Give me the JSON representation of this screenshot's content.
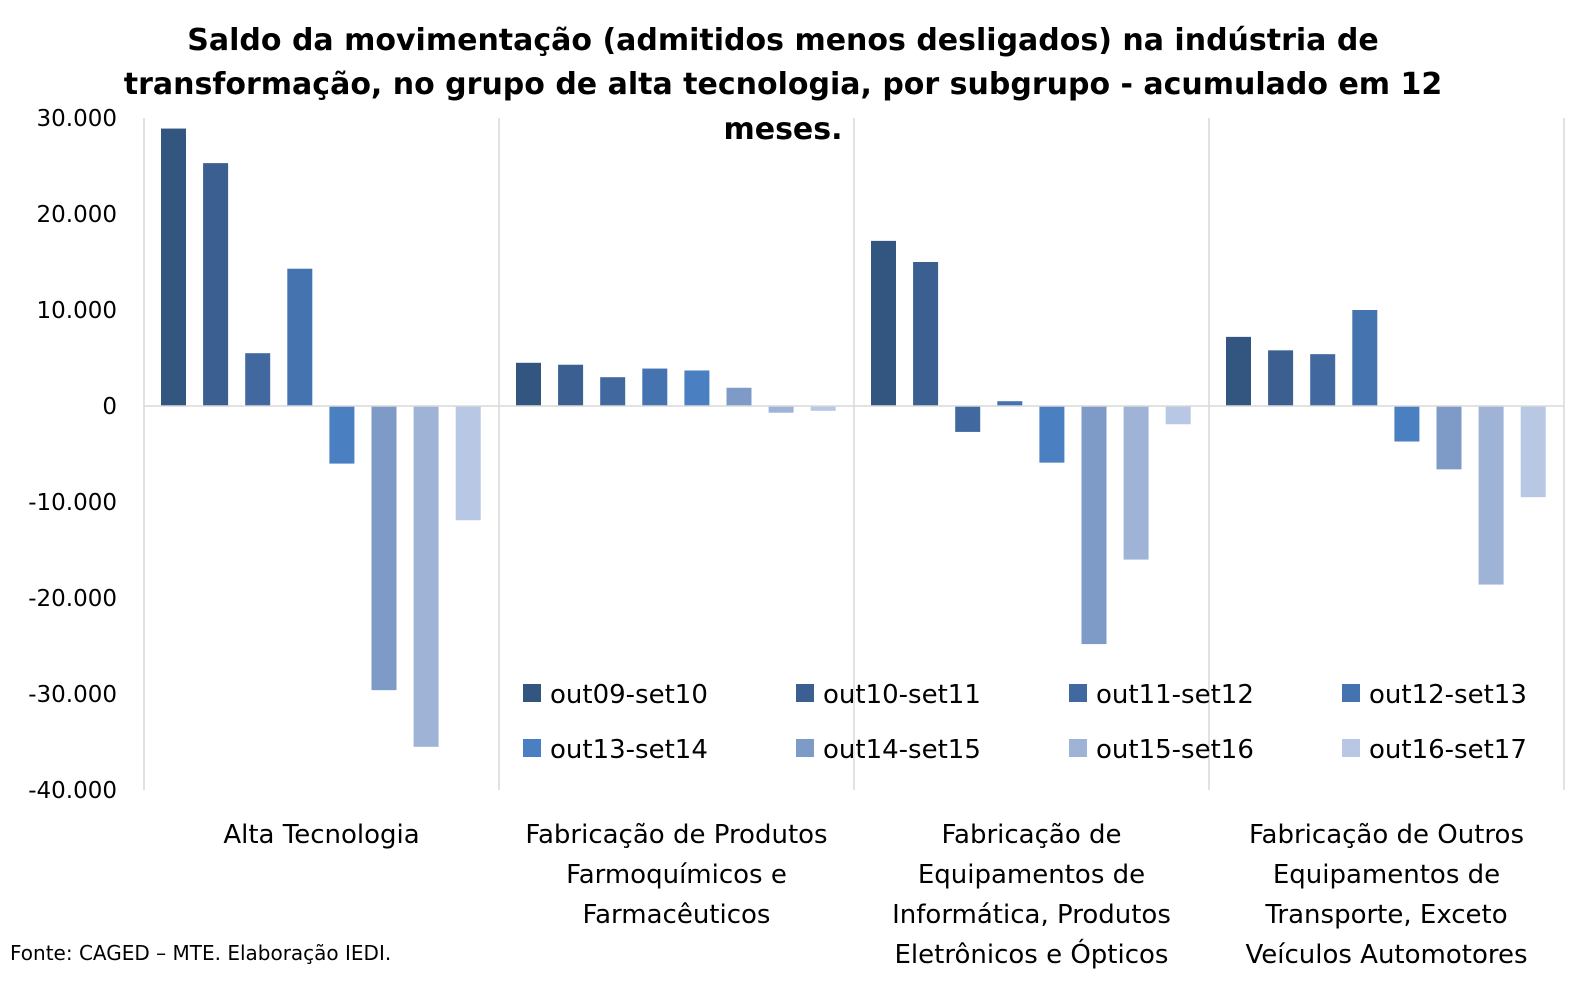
{
  "chart_data": {
    "type": "bar",
    "title": [
      "Saldo da movimentação (admitidos menos desligados) na indústria de",
      "transformação, no grupo de alta tecnologia, por subgrupo - acumulado em 12",
      "meses."
    ],
    "categories": [
      [
        "Alta Tecnologia"
      ],
      [
        "Fabricação de Produtos",
        "Farmoquímicos e",
        "Farmacêuticos"
      ],
      [
        "Fabricação de",
        "Equipamentos de",
        "Informática, Produtos",
        "Eletrônicos e Ópticos"
      ],
      [
        "Fabricação de Outros",
        "Equipamentos de",
        "Transporte, Exceto",
        "Veículos Automotores"
      ]
    ],
    "series": [
      {
        "name": "out09-set10",
        "color": "#335680",
        "values": [
          28900,
          4500,
          17200,
          7200
        ]
      },
      {
        "name": "out10-set11",
        "color": "#3b5f90",
        "values": [
          25300,
          4300,
          15000,
          5800
        ]
      },
      {
        "name": "out11-set12",
        "color": "#41699f",
        "values": [
          5500,
          3000,
          -2700,
          5400
        ]
      },
      {
        "name": "out12-set13",
        "color": "#4473b0",
        "values": [
          14300,
          3900,
          500,
          10000
        ]
      },
      {
        "name": "out13-set14",
        "color": "#4a7fc1",
        "values": [
          -6000,
          3700,
          -5900,
          -3700
        ]
      },
      {
        "name": "out14-set15",
        "color": "#7e9bc8",
        "values": [
          -29600,
          1900,
          -24800,
          -6600
        ]
      },
      {
        "name": "out15-set16",
        "color": "#9fb3d6",
        "values": [
          -35500,
          -700,
          -16000,
          -18600
        ]
      },
      {
        "name": "out16-set17",
        "color": "#b8c7e3",
        "values": [
          -11900,
          -500,
          -1900,
          -9500
        ]
      }
    ],
    "ylim": [
      -40000,
      30000
    ],
    "yticks": [
      30000,
      20000,
      10000,
      0,
      -10000,
      -20000,
      -30000,
      -40000
    ],
    "ytick_labels": [
      "30.000",
      "20.000",
      "10.000",
      "0",
      "-10.000",
      "-20.000",
      "-30.000",
      "-40.000"
    ],
    "xlabel": "",
    "ylabel": "",
    "legend_position": "bottom-right inside plot",
    "gridlines": false
  },
  "footer": {
    "source": "Fonte: CAGED – MTE. Elaboração IEDI."
  }
}
